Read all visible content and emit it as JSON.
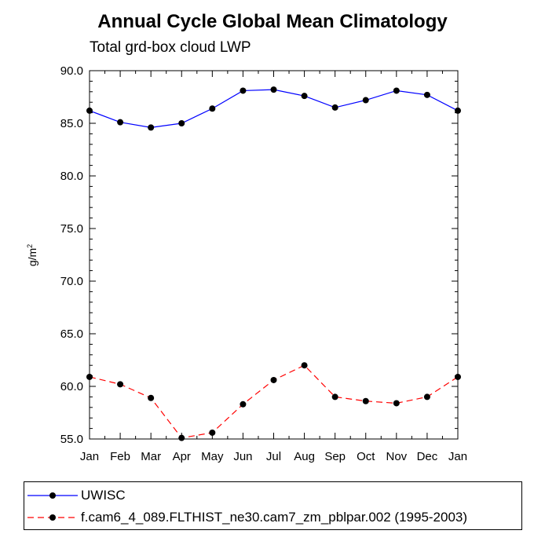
{
  "chart_data": {
    "type": "line",
    "title": "Annual Cycle Global Mean Climatology",
    "subtitle": "Total grd-box cloud LWP",
    "ylabel": "g/m",
    "ylabel_sup": "2",
    "xlabel": "",
    "categories": [
      "Jan",
      "Feb",
      "Mar",
      "Apr",
      "May",
      "Jun",
      "Jul",
      "Aug",
      "Sep",
      "Oct",
      "Nov",
      "Dec",
      "Jan"
    ],
    "ylim": [
      55.0,
      90.0
    ],
    "yticks": [
      "55.0",
      "60.0",
      "65.0",
      "70.0",
      "75.0",
      "80.0",
      "85.0",
      "90.0"
    ],
    "yticks_values": [
      55,
      60,
      65,
      70,
      75,
      80,
      85,
      90
    ],
    "series": [
      {
        "name": "UWISC",
        "color": "#0000ff",
        "dash": "solid",
        "values": [
          86.2,
          85.1,
          84.6,
          85.0,
          86.4,
          88.1,
          88.2,
          87.6,
          86.5,
          87.2,
          88.1,
          87.7,
          86.2
        ]
      },
      {
        "name": "f.cam6_4_089.FLTHIST_ne30.cam7_zm_pblpar.002 (1995-2003)",
        "color": "#ff0000",
        "dash": "dashed",
        "values": [
          60.9,
          60.2,
          58.9,
          55.1,
          55.6,
          58.3,
          60.6,
          62.0,
          59.0,
          58.6,
          58.4,
          59.0,
          60.9
        ]
      }
    ],
    "legend_position": "bottom"
  }
}
